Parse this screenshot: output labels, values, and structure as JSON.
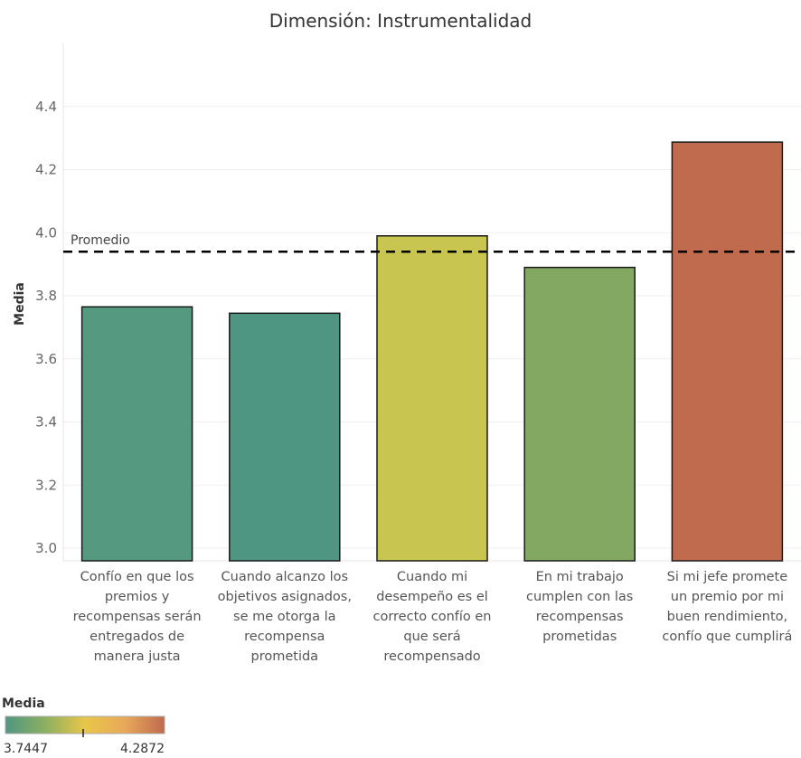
{
  "chart_data": {
    "type": "bar",
    "title": "Dimensión: Instrumentalidad",
    "xlabel": "",
    "ylabel": "Media",
    "ylim": [
      2.96,
      4.6
    ],
    "yticks": [
      "3.0",
      "3.2",
      "3.4",
      "3.6",
      "3.8",
      "4.0",
      "4.2",
      "4.4"
    ],
    "grid": true,
    "categories": [
      [
        "Confío en que los",
        "premios y",
        "recompensas serán",
        "entregados de",
        "manera justa"
      ],
      [
        "Cuando alcanzo los",
        "objetivos asignados,",
        "se me otorga la",
        "recompensa",
        "prometida"
      ],
      [
        "Cuando mi",
        "desempeño es el",
        "correcto confío en",
        "que será",
        "recompensado"
      ],
      [
        "En mi trabajo",
        "cumplen con las",
        "recompensas",
        "prometidas"
      ],
      [
        "Si mi jefe promete",
        "un premio por mi",
        "buen rendimiento,",
        "confío que cumplirá"
      ]
    ],
    "values": [
      3.765,
      3.7447,
      3.99,
      3.89,
      4.2872
    ],
    "bar_colors": [
      "#559a80",
      "#4f9682",
      "#c8c650",
      "#82a862",
      "#c06a4e"
    ],
    "reference_line": {
      "label": "Promedio",
      "value": 3.94
    },
    "color_legend": {
      "title": "Media",
      "min_label": "3.7447",
      "max_label": "4.2872",
      "gradient": [
        "#4f9682",
        "#8cb060",
        "#e8c64a",
        "#e8a95a",
        "#c06a4e"
      ]
    }
  }
}
